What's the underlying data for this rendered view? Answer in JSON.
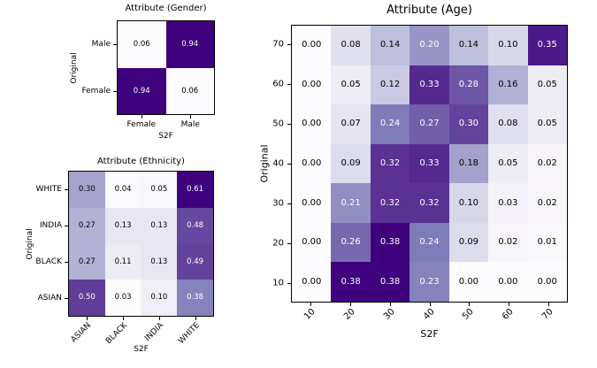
{
  "figure": {
    "background": "#ffffff",
    "axes_border_color": "#000000",
    "annotation_text_low_color": "#000000",
    "annotation_text_high_color": "#ffffff",
    "colormap": {
      "name": "Purples",
      "stops": [
        "#fcfbfd",
        "#efedf5",
        "#dadaeb",
        "#bcbddc",
        "#9e9ac8",
        "#807dba",
        "#6a51a3",
        "#54278f",
        "#3f007d"
      ]
    }
  },
  "chart_data": [
    {
      "id": "gender",
      "type": "heatmap",
      "title": "Attribute (Gender)",
      "xlabel": "S2F",
      "ylabel": "Original",
      "rows": [
        "Male",
        "Female"
      ],
      "columns": [
        "Female",
        "Male"
      ],
      "values": [
        [
          0.06,
          0.94
        ],
        [
          0.94,
          0.06
        ]
      ],
      "value_format": "two-decimals",
      "x_tick_rotation": 0,
      "color_scale": "min-max of values mapped onto Purples"
    },
    {
      "id": "ethnicity",
      "type": "heatmap",
      "title": "Attribute (Ethnicity)",
      "xlabel": "S2F",
      "ylabel": "Original",
      "rows": [
        "WHITE",
        "INDIA",
        "BLACK",
        "ASIAN"
      ],
      "columns": [
        "ASIAN",
        "BLACK",
        "INDIA",
        "WHITE"
      ],
      "values": [
        [
          0.3,
          0.04,
          0.05,
          0.61
        ],
        [
          0.27,
          0.13,
          0.13,
          0.48
        ],
        [
          0.27,
          0.11,
          0.13,
          0.49
        ],
        [
          0.5,
          0.03,
          0.1,
          0.38
        ]
      ],
      "value_format": "two-decimals",
      "x_tick_rotation": 45,
      "color_scale": "min-max of values mapped onto Purples"
    },
    {
      "id": "age",
      "type": "heatmap",
      "title": "Attribute (Age)",
      "xlabel": "S2F",
      "ylabel": "Original",
      "rows": [
        "70",
        "60",
        "50",
        "40",
        "30",
        "20",
        "10"
      ],
      "columns": [
        "10",
        "20",
        "30",
        "40",
        "50",
        "60",
        "70"
      ],
      "values": [
        [
          0.0,
          0.08,
          0.14,
          0.2,
          0.14,
          0.1,
          0.35
        ],
        [
          0.0,
          0.05,
          0.12,
          0.33,
          0.28,
          0.16,
          0.05
        ],
        [
          0.0,
          0.07,
          0.24,
          0.27,
          0.3,
          0.08,
          0.05
        ],
        [
          0.0,
          0.09,
          0.32,
          0.33,
          0.18,
          0.05,
          0.02
        ],
        [
          0.0,
          0.21,
          0.32,
          0.32,
          0.1,
          0.03,
          0.02
        ],
        [
          0.0,
          0.26,
          0.38,
          0.24,
          0.09,
          0.02,
          0.01
        ],
        [
          0.0,
          0.38,
          0.38,
          0.23,
          0.0,
          0.0,
          0.0
        ]
      ],
      "value_format": "two-decimals",
      "x_tick_rotation": 45,
      "color_scale": "min-max of values mapped onto Purples"
    }
  ]
}
